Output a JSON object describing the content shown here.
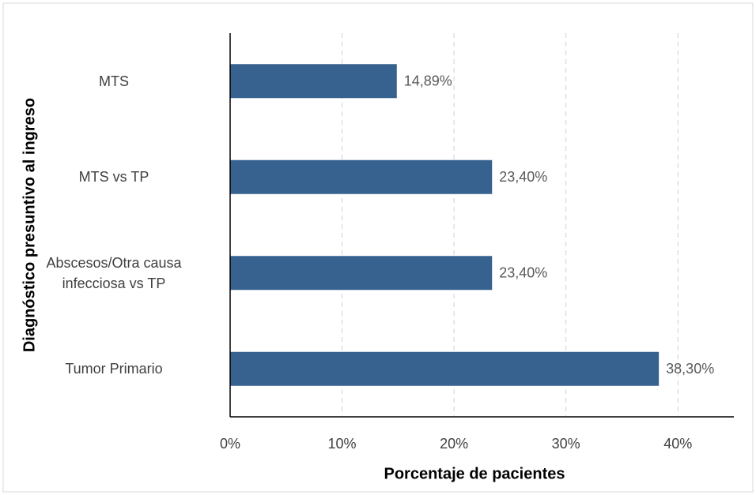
{
  "chart_data": {
    "type": "bar",
    "orientation": "horizontal",
    "categories": [
      "MTS",
      "MTS vs TP",
      "Abscesos/Otra causa\ninfecciosa vs TP",
      "Tumor Primario"
    ],
    "values": [
      14.89,
      23.4,
      23.4,
      38.3
    ],
    "value_labels": [
      "14,89%",
      "23,40%",
      "23,40%",
      "38,30%"
    ],
    "color": "#37618f",
    "xlim": [
      0,
      45
    ],
    "xticks": [
      {
        "value": 0,
        "label": "0%"
      },
      {
        "value": 10,
        "label": "10%"
      },
      {
        "value": 20,
        "label": "20%"
      },
      {
        "value": 30,
        "label": "30%"
      },
      {
        "value": 40,
        "label": "40%"
      }
    ],
    "grid": true,
    "xlabel": "Porcentaje de pacientes",
    "ylabel": "Diagnóstico presuntivo al ingreso"
  }
}
